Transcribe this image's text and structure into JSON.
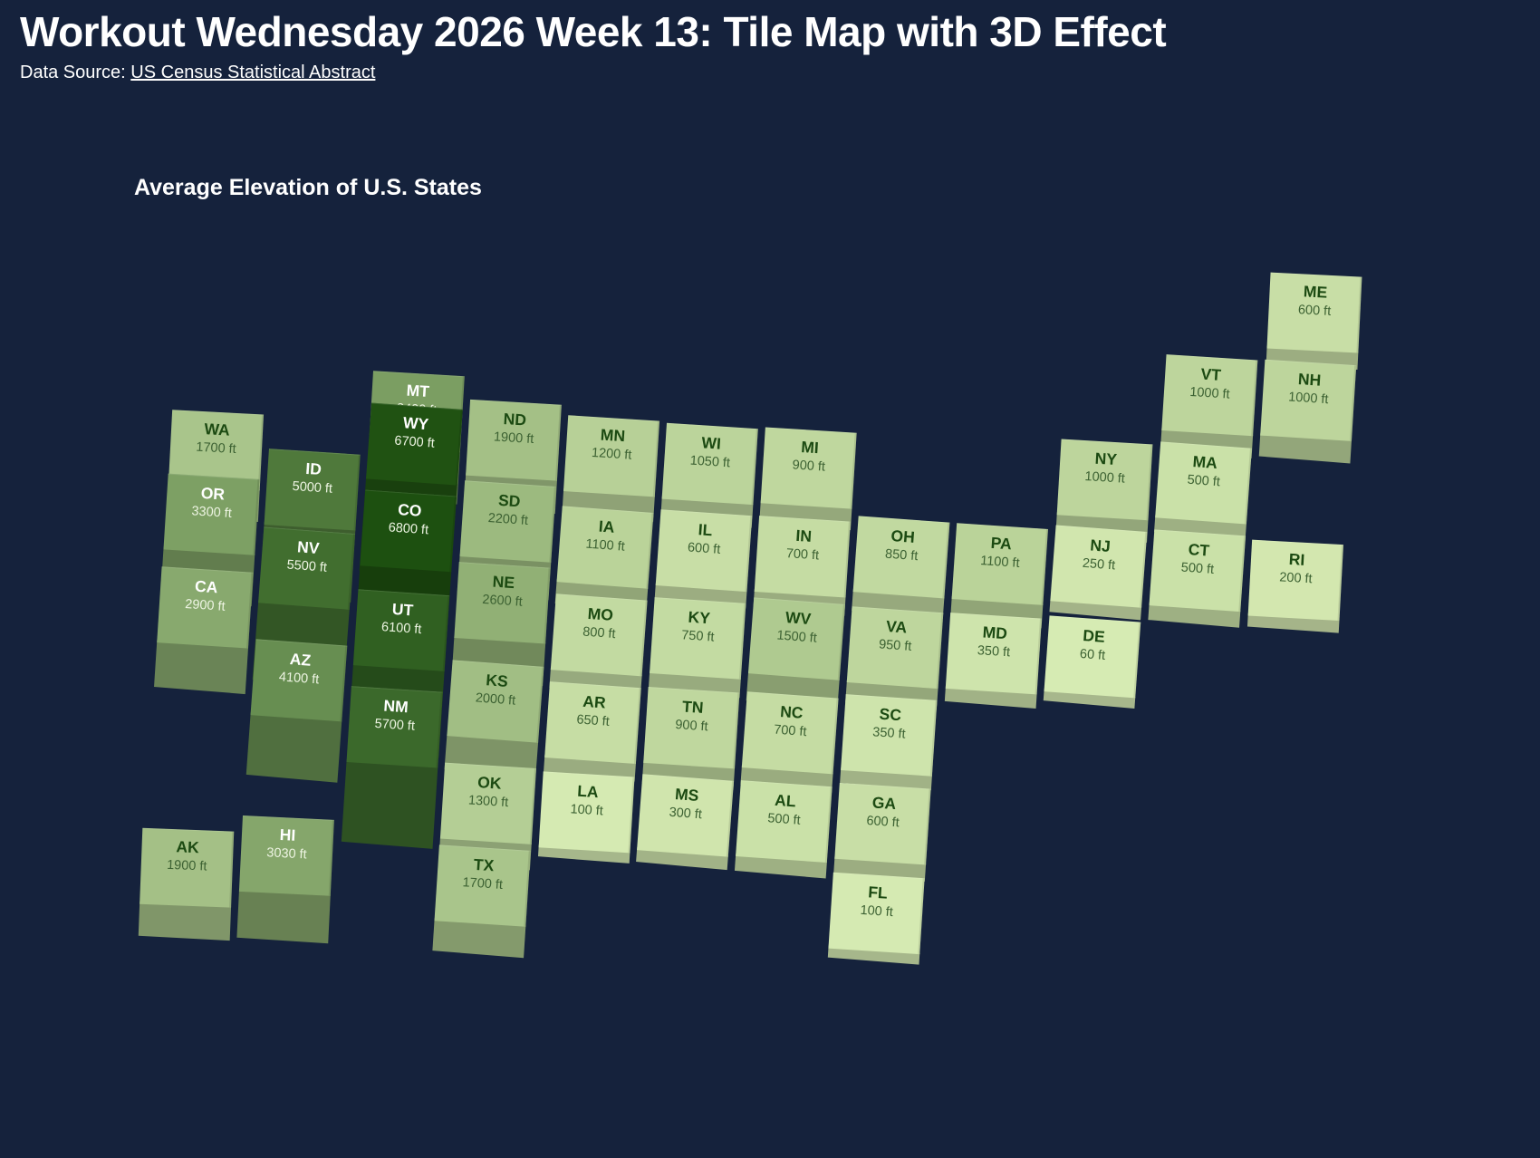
{
  "header": {
    "title": "Workout Wednesday 2026 Week 13: Tile Map with 3D Effect",
    "data_source_prefix": "Data Source: ",
    "data_source_link": "US Census Statistical Abstract"
  },
  "chart_data": {
    "type": "tile-map-3d",
    "title": "Average Elevation of U.S. States",
    "unit": "ft",
    "background_color": "#15223c",
    "color_scale": {
      "min_color": "#d8ecb4",
      "max_color": "#1d5010",
      "domain": [
        0,
        6800
      ]
    },
    "text_colors": {
      "dark_abbr": "#1c4a12",
      "dark_value": "#3d6233",
      "light": "#ffffff",
      "white_text_threshold": 2900
    },
    "layout_hint": "grid of state tiles rotated ~4deg clockwise, extrusion height proportional to elevation",
    "states": [
      {
        "abbr": "WA",
        "value": 1700,
        "row": 2,
        "col": 0
      },
      {
        "abbr": "OR",
        "value": 3300,
        "row": 3,
        "col": 0
      },
      {
        "abbr": "CA",
        "value": 2900,
        "row": 4,
        "col": 0
      },
      {
        "abbr": "AK",
        "value": 1900,
        "row": 7,
        "col": 0
      },
      {
        "abbr": "ID",
        "value": 5000,
        "row": 3,
        "col": 1
      },
      {
        "abbr": "NV",
        "value": 5500,
        "row": 4,
        "col": 1
      },
      {
        "abbr": "AZ",
        "value": 4100,
        "row": 5,
        "col": 1
      },
      {
        "abbr": "HI",
        "value": 3030,
        "row": 7,
        "col": 1
      },
      {
        "abbr": "MT",
        "value": 3400,
        "row": 2,
        "col": 2
      },
      {
        "abbr": "WY",
        "value": 6700,
        "row": 3,
        "col": 2
      },
      {
        "abbr": "CO",
        "value": 6800,
        "row": 4,
        "col": 2
      },
      {
        "abbr": "UT",
        "value": 6100,
        "row": 5,
        "col": 2
      },
      {
        "abbr": "NM",
        "value": 5700,
        "row": 6,
        "col": 2
      },
      {
        "abbr": "ND",
        "value": 1900,
        "row": 2,
        "col": 3
      },
      {
        "abbr": "SD",
        "value": 2200,
        "row": 3,
        "col": 3
      },
      {
        "abbr": "NE",
        "value": 2600,
        "row": 4,
        "col": 3
      },
      {
        "abbr": "KS",
        "value": 2000,
        "row": 5,
        "col": 3
      },
      {
        "abbr": "OK",
        "value": 1300,
        "row": 6,
        "col": 3
      },
      {
        "abbr": "TX",
        "value": 1700,
        "row": 7,
        "col": 3
      },
      {
        "abbr": "MN",
        "value": 1200,
        "row": 2,
        "col": 4
      },
      {
        "abbr": "IA",
        "value": 1100,
        "row": 3,
        "col": 4
      },
      {
        "abbr": "MO",
        "value": 800,
        "row": 4,
        "col": 4
      },
      {
        "abbr": "AR",
        "value": 650,
        "row": 5,
        "col": 4
      },
      {
        "abbr": "LA",
        "value": 100,
        "row": 6,
        "col": 4
      },
      {
        "abbr": "WI",
        "value": 1050,
        "row": 2,
        "col": 5
      },
      {
        "abbr": "IL",
        "value": 600,
        "row": 3,
        "col": 5
      },
      {
        "abbr": "KY",
        "value": 750,
        "row": 4,
        "col": 5
      },
      {
        "abbr": "TN",
        "value": 900,
        "row": 5,
        "col": 5
      },
      {
        "abbr": "MS",
        "value": 300,
        "row": 6,
        "col": 5
      },
      {
        "abbr": "MI",
        "value": 900,
        "row": 2,
        "col": 6
      },
      {
        "abbr": "IN",
        "value": 700,
        "row": 3,
        "col": 6
      },
      {
        "abbr": "WV",
        "value": 1500,
        "row": 4,
        "col": 6
      },
      {
        "abbr": "NC",
        "value": 700,
        "row": 5,
        "col": 6
      },
      {
        "abbr": "AL",
        "value": 500,
        "row": 6,
        "col": 6
      },
      {
        "abbr": "OH",
        "value": 850,
        "row": 3,
        "col": 7
      },
      {
        "abbr": "VA",
        "value": 950,
        "row": 4,
        "col": 7
      },
      {
        "abbr": "SC",
        "value": 350,
        "row": 5,
        "col": 7
      },
      {
        "abbr": "GA",
        "value": 600,
        "row": 6,
        "col": 7
      },
      {
        "abbr": "FL",
        "value": 100,
        "row": 7,
        "col": 7
      },
      {
        "abbr": "PA",
        "value": 1100,
        "row": 3,
        "col": 8
      },
      {
        "abbr": "MD",
        "value": 350,
        "row": 4,
        "col": 8
      },
      {
        "abbr": "NY",
        "value": 1000,
        "row": 2,
        "col": 9
      },
      {
        "abbr": "NJ",
        "value": 250,
        "row": 3,
        "col": 9
      },
      {
        "abbr": "DE",
        "value": 60,
        "row": 4,
        "col": 9
      },
      {
        "abbr": "VT",
        "value": 1000,
        "row": 1,
        "col": 10
      },
      {
        "abbr": "MA",
        "value": 500,
        "row": 2,
        "col": 10
      },
      {
        "abbr": "CT",
        "value": 500,
        "row": 3,
        "col": 10
      },
      {
        "abbr": "ME",
        "value": 600,
        "row": 0,
        "col": 11
      },
      {
        "abbr": "NH",
        "value": 1000,
        "row": 1,
        "col": 11
      },
      {
        "abbr": "RI",
        "value": 200,
        "row": 3,
        "col": 11
      }
    ]
  }
}
